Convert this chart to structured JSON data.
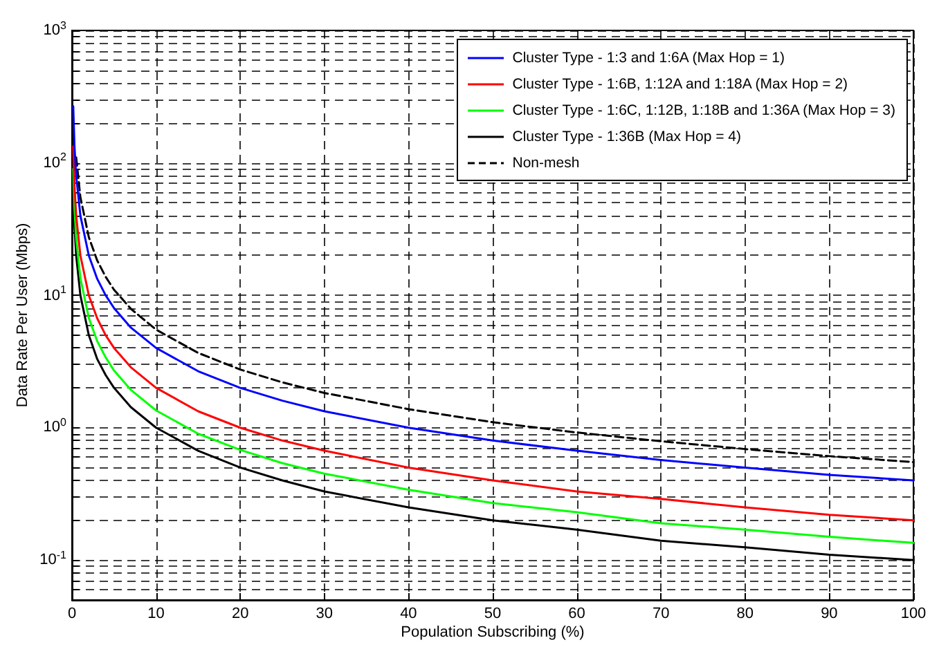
{
  "chart_data": {
    "type": "line",
    "xlabel": "Population Subscribing (%)",
    "ylabel": "Data Rate Per User (Mbps)",
    "x": [
      0.15,
      0.3,
      0.5,
      1,
      2,
      3,
      4,
      5,
      7,
      10,
      15,
      20,
      25,
      30,
      40,
      50,
      60,
      70,
      80,
      90,
      100
    ],
    "series": [
      {
        "name": "Cluster Type - 1:3 and 1:6A (Max Hop = 1)",
        "color": "#0000ff",
        "values": [
          267,
          133,
          80,
          40,
          20,
          13.3,
          10,
          8,
          5.7,
          4,
          2.67,
          2,
          1.6,
          1.33,
          1,
          0.8,
          0.67,
          0.57,
          0.5,
          0.44,
          0.4
        ]
      },
      {
        "name": "Cluster Type - 1:6B, 1:12A and 1:18A (Max Hop = 2)",
        "color": "#ff0000",
        "values": [
          133,
          67,
          40,
          20,
          10,
          6.7,
          5,
          4,
          2.86,
          2,
          1.33,
          1,
          0.8,
          0.67,
          0.5,
          0.4,
          0.33,
          0.29,
          0.25,
          0.22,
          0.2
        ]
      },
      {
        "name": "Cluster Type - 1:6C, 1:12B, 1:18B and 1:36A (Max Hop = 3)",
        "color": "#00ff00",
        "values": [
          90,
          45,
          27,
          13.5,
          6.75,
          4.5,
          3.4,
          2.7,
          1.93,
          1.35,
          0.9,
          0.68,
          0.54,
          0.45,
          0.34,
          0.27,
          0.23,
          0.19,
          0.17,
          0.15,
          0.135
        ]
      },
      {
        "name": "Cluster Type - 1:36B (Max Hop = 4)",
        "color": "#000000",
        "values": [
          67,
          33,
          20,
          10,
          5,
          3.3,
          2.5,
          2,
          1.43,
          1,
          0.67,
          0.5,
          0.4,
          0.33,
          0.25,
          0.2,
          0.17,
          0.14,
          0.125,
          0.11,
          0.1
        ]
      },
      {
        "name": "Non-mesh",
        "color": "#000000",
        "line_style": "dashed",
        "x": [
          0.5,
          1,
          2,
          3,
          4,
          5,
          7,
          10,
          15,
          20,
          25,
          30,
          40,
          50,
          60,
          70,
          80,
          90,
          100
        ],
        "values": [
          110,
          55,
          27.5,
          18.3,
          13.8,
          11,
          7.9,
          5.5,
          3.67,
          2.75,
          2.2,
          1.83,
          1.38,
          1.1,
          0.92,
          0.79,
          0.69,
          0.61,
          0.55
        ]
      }
    ],
    "log": "y",
    "xlim": [
      0,
      100
    ],
    "xticks": [
      0,
      10,
      20,
      30,
      40,
      50,
      60,
      70,
      80,
      90,
      100
    ],
    "ylim": [
      0.05,
      1000
    ],
    "yticks": [
      {
        "value": 0.05,
        "label": null
      },
      {
        "value": 0.06,
        "label": null
      },
      {
        "value": 0.07,
        "label": null
      },
      {
        "value": 0.08,
        "label": null
      },
      {
        "value": 0.09,
        "label": null
      },
      {
        "value": 0.1,
        "label": "10$^{-1}$"
      },
      {
        "value": 0.2,
        "label": null
      },
      {
        "value": 0.3,
        "label": null
      },
      {
        "value": 0.4,
        "label": null
      },
      {
        "value": 0.5,
        "label": null
      },
      {
        "value": 0.6,
        "label": null
      },
      {
        "value": 0.7,
        "label": null
      },
      {
        "value": 0.8,
        "label": null
      },
      {
        "value": 0.9,
        "label": null
      },
      {
        "value": 1,
        "label": "10$^{0}$"
      },
      {
        "value": 2,
        "label": null
      },
      {
        "value": 3,
        "label": null
      },
      {
        "value": 4,
        "label": null
      },
      {
        "value": 5,
        "label": null
      },
      {
        "value": 6,
        "label": null
      },
      {
        "value": 7,
        "label": null
      },
      {
        "value": 8,
        "label": null
      },
      {
        "value": 9,
        "label": null
      },
      {
        "value": 10,
        "label": "10$^{1}$"
      },
      {
        "value": 20,
        "label": null
      },
      {
        "value": 30,
        "label": null
      },
      {
        "value": 40,
        "label": null
      },
      {
        "value": 50,
        "label": null
      },
      {
        "value": 60,
        "label": null
      },
      {
        "value": 70,
        "label": null
      },
      {
        "value": 80,
        "label": null
      },
      {
        "value": 90,
        "label": null
      },
      {
        "value": 100,
        "label": "10$^{2}$"
      },
      {
        "value": 200,
        "label": null
      },
      {
        "value": 300,
        "label": null
      },
      {
        "value": 400,
        "label": null
      },
      {
        "value": 500,
        "label": null
      },
      {
        "value": 600,
        "label": null
      },
      {
        "value": 700,
        "label": null
      },
      {
        "value": 800,
        "label": null
      },
      {
        "value": 900,
        "label": null
      },
      {
        "value": 1000,
        "label": "10$^{3}$"
      }
    ],
    "grid": true,
    "legend": "top right",
    "marker": "none",
    "line_style": "solid"
  }
}
